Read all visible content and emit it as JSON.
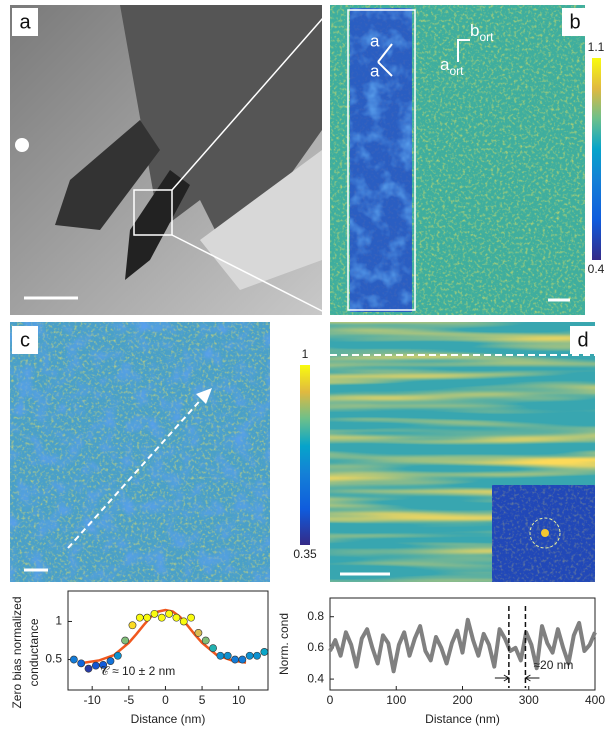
{
  "panel_labels": [
    "a",
    "b",
    "c",
    "d"
  ],
  "panel_b": {
    "arrow_labels": [
      "a",
      "a"
    ],
    "axis_labels": [
      {
        "base": "b",
        "sub": "ort"
      },
      {
        "base": "a",
        "sub": "ort"
      }
    ],
    "colorbar": {
      "lim": [
        0.4,
        1.1
      ],
      "ticks": [
        0.4,
        1.1
      ]
    }
  },
  "panel_c": {
    "colorbar": {
      "lim": [
        0.35,
        1
      ],
      "ticks": [
        0.35,
        1
      ]
    }
  },
  "chart_data": [
    {
      "type": "scatter",
      "xlabel": "Distance (nm)",
      "ylabel": [
        "Zero bias normalized",
        "conductance"
      ],
      "annotation": "𝒞 ≈ 10 ± 2 nm",
      "x": [
        -12.5,
        -11.5,
        -10.5,
        -9.5,
        -8.5,
        -7.5,
        -6.5,
        -5.5,
        -4.5,
        -3.5,
        -2.5,
        -1.5,
        -0.5,
        0.5,
        1.5,
        2.5,
        3.5,
        4.5,
        5.5,
        6.5,
        7.5,
        8.5,
        9.5,
        10.5,
        11.5,
        12.5,
        13.5
      ],
      "values": [
        0.5,
        0.45,
        0.38,
        0.42,
        0.43,
        0.48,
        0.55,
        0.75,
        0.95,
        1.05,
        1.05,
        1.1,
        1.05,
        1.1,
        1.05,
        1.0,
        1.05,
        0.85,
        0.75,
        0.65,
        0.55,
        0.55,
        0.5,
        0.5,
        0.55,
        0.55,
        0.6
      ],
      "fit": {
        "color": "#f0581e",
        "x": [
          -11,
          -9,
          -7,
          -5,
          -4,
          -3,
          -2,
          -1,
          0,
          1,
          2,
          3,
          4,
          5,
          7,
          9,
          11
        ],
        "values": [
          0.46,
          0.49,
          0.56,
          0.72,
          0.83,
          0.95,
          1.06,
          1.13,
          1.15,
          1.13,
          1.06,
          0.95,
          0.83,
          0.72,
          0.56,
          0.49,
          0.46
        ]
      },
      "xlim": [
        -13.3,
        14
      ],
      "ylim": [
        0.1,
        1.4
      ],
      "xticks": [
        -10,
        -5,
        0,
        5,
        10
      ],
      "yticks": [
        0.5,
        1
      ]
    },
    {
      "type": "line",
      "xlabel": "Distance (nm)",
      "ylabel": "Norm. cond",
      "color": "#808080",
      "annotation": "≈20 nm",
      "markers": [
        270,
        295
      ],
      "x": [
        0,
        8,
        16,
        24,
        32,
        40,
        48,
        56,
        64,
        72,
        80,
        88,
        96,
        104,
        112,
        120,
        128,
        136,
        144,
        152,
        160,
        168,
        176,
        184,
        192,
        200,
        208,
        216,
        224,
        232,
        240,
        248,
        256,
        264,
        272,
        280,
        288,
        296,
        304,
        312,
        320,
        328,
        336,
        344,
        352,
        360,
        368,
        376,
        384,
        392,
        400
      ],
      "values": [
        0.58,
        0.65,
        0.55,
        0.7,
        0.62,
        0.48,
        0.66,
        0.72,
        0.6,
        0.5,
        0.68,
        0.63,
        0.45,
        0.62,
        0.7,
        0.55,
        0.66,
        0.74,
        0.58,
        0.52,
        0.67,
        0.6,
        0.5,
        0.63,
        0.71,
        0.57,
        0.78,
        0.65,
        0.55,
        0.69,
        0.62,
        0.48,
        0.72,
        0.66,
        0.58,
        0.6,
        0.52,
        0.7,
        0.62,
        0.47,
        0.74,
        0.63,
        0.57,
        0.72,
        0.6,
        0.5,
        0.68,
        0.76,
        0.58,
        0.62,
        0.7
      ],
      "xlim": [
        0,
        400
      ],
      "ylim": [
        0.33,
        0.92
      ],
      "xticks": [
        0,
        100,
        200,
        300,
        400
      ],
      "yticks": [
        0.4,
        0.6,
        0.8
      ]
    }
  ]
}
